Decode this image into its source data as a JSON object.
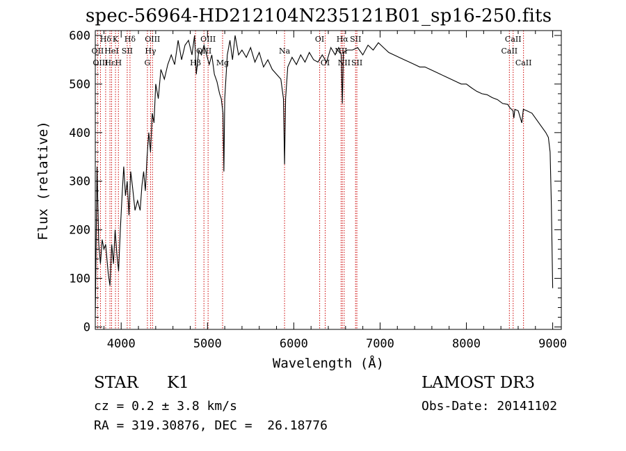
{
  "chart_data": {
    "type": "line",
    "title": "spec-56964-HD212104N235121B01_sp16-250.fits",
    "xlabel": "Wavelength (Å)",
    "ylabel": "Flux (relative)",
    "xlim": [
      3700,
      9100
    ],
    "ylim": [
      -5,
      610
    ],
    "xticks": [
      4000,
      5000,
      6000,
      7000,
      8000,
      9000
    ],
    "xtick_labels": [
      "4000",
      "5000",
      "6000",
      "7000",
      "8000",
      "9000"
    ],
    "yticks": [
      0,
      100,
      200,
      300,
      400,
      500,
      600
    ],
    "ytick_labels": [
      "0",
      "100",
      "200",
      "300",
      "400",
      "500",
      "600"
    ],
    "series": [
      {
        "name": "flux",
        "points": [
          [
            3700,
            20
          ],
          [
            3720,
            330
          ],
          [
            3740,
            170
          ],
          [
            3760,
            130
          ],
          [
            3780,
            180
          ],
          [
            3800,
            160
          ],
          [
            3820,
            170
          ],
          [
            3850,
            110
          ],
          [
            3870,
            85
          ],
          [
            3890,
            170
          ],
          [
            3910,
            130
          ],
          [
            3930,
            200
          ],
          [
            3950,
            150
          ],
          [
            3970,
            115
          ],
          [
            3990,
            200
          ],
          [
            4010,
            270
          ],
          [
            4030,
            330
          ],
          [
            4050,
            270
          ],
          [
            4070,
            300
          ],
          [
            4090,
            230
          ],
          [
            4110,
            320
          ],
          [
            4130,
            290
          ],
          [
            4160,
            240
          ],
          [
            4190,
            260
          ],
          [
            4220,
            240
          ],
          [
            4240,
            290
          ],
          [
            4260,
            320
          ],
          [
            4280,
            280
          ],
          [
            4300,
            350
          ],
          [
            4320,
            400
          ],
          [
            4340,
            360
          ],
          [
            4360,
            440
          ],
          [
            4380,
            420
          ],
          [
            4400,
            500
          ],
          [
            4430,
            470
          ],
          [
            4460,
            530
          ],
          [
            4500,
            510
          ],
          [
            4540,
            540
          ],
          [
            4580,
            560
          ],
          [
            4620,
            540
          ],
          [
            4660,
            590
          ],
          [
            4700,
            550
          ],
          [
            4740,
            580
          ],
          [
            4780,
            590
          ],
          [
            4820,
            560
          ],
          [
            4850,
            600
          ],
          [
            4870,
            520
          ],
          [
            4900,
            570
          ],
          [
            4930,
            560
          ],
          [
            4960,
            580
          ],
          [
            4990,
            560
          ],
          [
            5020,
            540
          ],
          [
            5050,
            560
          ],
          [
            5080,
            520
          ],
          [
            5110,
            505
          ],
          [
            5140,
            480
          ],
          [
            5160,
            470
          ],
          [
            5180,
            440
          ],
          [
            5190,
            320
          ],
          [
            5200,
            470
          ],
          [
            5230,
            560
          ],
          [
            5260,
            590
          ],
          [
            5290,
            550
          ],
          [
            5320,
            600
          ],
          [
            5360,
            560
          ],
          [
            5400,
            570
          ],
          [
            5450,
            555
          ],
          [
            5500,
            575
          ],
          [
            5550,
            545
          ],
          [
            5600,
            565
          ],
          [
            5650,
            535
          ],
          [
            5700,
            550
          ],
          [
            5750,
            530
          ],
          [
            5800,
            520
          ],
          [
            5850,
            510
          ],
          [
            5880,
            470
          ],
          [
            5893,
            335
          ],
          [
            5905,
            470
          ],
          [
            5930,
            535
          ],
          [
            5980,
            555
          ],
          [
            6030,
            540
          ],
          [
            6080,
            560
          ],
          [
            6130,
            545
          ],
          [
            6180,
            565
          ],
          [
            6230,
            550
          ],
          [
            6280,
            545
          ],
          [
            6330,
            560
          ],
          [
            6380,
            545
          ],
          [
            6430,
            575
          ],
          [
            6480,
            560
          ],
          [
            6520,
            575
          ],
          [
            6550,
            560
          ],
          [
            6563,
            460
          ],
          [
            6575,
            565
          ],
          [
            6620,
            570
          ],
          [
            6680,
            570
          ],
          [
            6740,
            575
          ],
          [
            6800,
            560
          ],
          [
            6860,
            580
          ],
          [
            6920,
            570
          ],
          [
            6980,
            585
          ],
          [
            7040,
            575
          ],
          [
            7100,
            565
          ],
          [
            7160,
            560
          ],
          [
            7220,
            555
          ],
          [
            7280,
            550
          ],
          [
            7340,
            545
          ],
          [
            7400,
            540
          ],
          [
            7460,
            535
          ],
          [
            7520,
            535
          ],
          [
            7580,
            530
          ],
          [
            7640,
            525
          ],
          [
            7700,
            520
          ],
          [
            7760,
            515
          ],
          [
            7820,
            510
          ],
          [
            7880,
            505
          ],
          [
            7940,
            500
          ],
          [
            8000,
            500
          ],
          [
            8060,
            492
          ],
          [
            8120,
            485
          ],
          [
            8180,
            480
          ],
          [
            8240,
            478
          ],
          [
            8300,
            472
          ],
          [
            8360,
            468
          ],
          [
            8420,
            460
          ],
          [
            8480,
            458
          ],
          [
            8500,
            452
          ],
          [
            8540,
            445
          ],
          [
            8550,
            430
          ],
          [
            8562,
            448
          ],
          [
            8600,
            445
          ],
          [
            8642,
            420
          ],
          [
            8660,
            448
          ],
          [
            8700,
            445
          ],
          [
            8760,
            440
          ],
          [
            8800,
            430
          ],
          [
            8840,
            420
          ],
          [
            8880,
            410
          ],
          [
            8920,
            400
          ],
          [
            8950,
            390
          ],
          [
            8970,
            360
          ],
          [
            8985,
            250
          ],
          [
            9000,
            80
          ]
        ]
      }
    ],
    "lines": [
      {
        "label": "Hδ",
        "w": 3820,
        "row": 0
      },
      {
        "label": "OII",
        "w": 3727,
        "row": 1
      },
      {
        "label": "OIII",
        "w": 3760,
        "row": 2
      },
      {
        "label": "K",
        "w": 3934,
        "row": 0
      },
      {
        "label": "HeI",
        "w": 3889,
        "row": 1
      },
      {
        "label": "Hε",
        "w": 3870,
        "row": 2
      },
      {
        "label": "SII",
        "w": 4070,
        "row": 1
      },
      {
        "label": "H",
        "w": 3968,
        "row": 2
      },
      {
        "label": "Hδ",
        "w": 4102,
        "row": 0
      },
      {
        "label": "OIII",
        "w": 4363,
        "row": 0
      },
      {
        "label": "Hγ",
        "w": 4340,
        "row": 1
      },
      {
        "label": "G",
        "w": 4304,
        "row": 2
      },
      {
        "label": "OIII",
        "w": 5007,
        "row": 0
      },
      {
        "label": "OIII",
        "w": 4959,
        "row": 1
      },
      {
        "label": "Hβ",
        "w": 4861,
        "row": 2
      },
      {
        "label": "Mg",
        "w": 5175,
        "row": 2
      },
      {
        "label": "Na",
        "w": 5893,
        "row": 1
      },
      {
        "label": "OI",
        "w": 6300,
        "row": 0
      },
      {
        "label": "OI",
        "w": 6364,
        "row": 2
      },
      {
        "label": "Hα",
        "w": 6563,
        "row": 0
      },
      {
        "label": "SII",
        "w": 6716,
        "row": 0
      },
      {
        "label": "NII",
        "w": 6548,
        "row": 1
      },
      {
        "label": "NII",
        "w": 6584,
        "row": 2
      },
      {
        "label": "SII",
        "w": 6731,
        "row": 2
      },
      {
        "label": "CaII",
        "w": 8542,
        "row": 0
      },
      {
        "label": "CaII",
        "w": 8498,
        "row": 1
      },
      {
        "label": "CaII",
        "w": 8662,
        "row": 2
      }
    ],
    "line_color": "#000000",
    "marker_color": "#cc0000"
  },
  "info": {
    "class": "STAR",
    "subclass": "K1",
    "survey": "LAMOST DR3",
    "cz": "cz = 0.2 ± 3.8 km/s",
    "obs_date": "Obs-Date: 20141102",
    "radec": "RA = 319.30876, DEC =  26.18776"
  }
}
